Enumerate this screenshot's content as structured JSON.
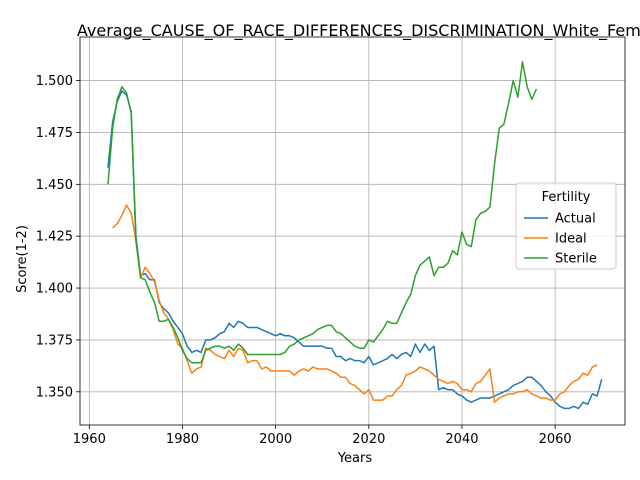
{
  "chart_data": {
    "type": "line",
    "title": "Average_CAUSE_OF_RACE_DIFFERENCES_DISCRIMINATION_White_Female_Above_",
    "xlabel": "Years",
    "ylabel": "Score(1-2)",
    "xlim": [
      1958,
      2075
    ],
    "ylim": [
      1.334,
      1.521
    ],
    "xticks": [
      1960,
      1980,
      2000,
      2020,
      2040,
      2060
    ],
    "yticks": [
      1.35,
      1.375,
      1.4,
      1.425,
      1.45,
      1.475,
      1.5
    ],
    "ytick_labels": [
      "1.350",
      "1.375",
      "1.400",
      "1.425",
      "1.450",
      "1.475",
      "1.500"
    ],
    "grid": true,
    "legend": {
      "title": "Fertility",
      "placement": "center-right"
    },
    "series": [
      {
        "name": "Actual",
        "color": "#1f77b4",
        "points": [
          [
            1964,
            1.458
          ],
          [
            1965,
            1.48
          ],
          [
            1966,
            1.49
          ],
          [
            1967,
            1.495
          ],
          [
            1968,
            1.493
          ],
          [
            1969,
            1.485
          ],
          [
            1970,
            1.425
          ],
          [
            1971,
            1.406
          ],
          [
            1972,
            1.407
          ],
          [
            1973,
            1.404
          ],
          [
            1974,
            1.404
          ],
          [
            1975,
            1.393
          ],
          [
            1976,
            1.39
          ],
          [
            1977,
            1.388
          ],
          [
            1978,
            1.384
          ],
          [
            1979,
            1.381
          ],
          [
            1980,
            1.378
          ],
          [
            1981,
            1.372
          ],
          [
            1982,
            1.369
          ],
          [
            1983,
            1.37
          ],
          [
            1984,
            1.369
          ],
          [
            1985,
            1.375
          ],
          [
            1986,
            1.375
          ],
          [
            1987,
            1.376
          ],
          [
            1988,
            1.378
          ],
          [
            1989,
            1.379
          ],
          [
            1990,
            1.383
          ],
          [
            1991,
            1.381
          ],
          [
            1992,
            1.384
          ],
          [
            1993,
            1.383
          ],
          [
            1994,
            1.381
          ],
          [
            1995,
            1.381
          ],
          [
            1996,
            1.381
          ],
          [
            1997,
            1.38
          ],
          [
            1998,
            1.379
          ],
          [
            1999,
            1.378
          ],
          [
            2000,
            1.377
          ],
          [
            2001,
            1.378
          ],
          [
            2002,
            1.377
          ],
          [
            2003,
            1.377
          ],
          [
            2004,
            1.376
          ],
          [
            2005,
            1.374
          ],
          [
            2006,
            1.372
          ],
          [
            2007,
            1.372
          ],
          [
            2008,
            1.372
          ],
          [
            2009,
            1.372
          ],
          [
            2010,
            1.372
          ],
          [
            2011,
            1.371
          ],
          [
            2012,
            1.371
          ],
          [
            2013,
            1.367
          ],
          [
            2014,
            1.367
          ],
          [
            2015,
            1.365
          ],
          [
            2016,
            1.366
          ],
          [
            2017,
            1.365
          ],
          [
            2018,
            1.365
          ],
          [
            2019,
            1.364
          ],
          [
            2020,
            1.367
          ],
          [
            2021,
            1.363
          ],
          [
            2022,
            1.364
          ],
          [
            2023,
            1.365
          ],
          [
            2024,
            1.366
          ],
          [
            2025,
            1.368
          ],
          [
            2026,
            1.366
          ],
          [
            2027,
            1.368
          ],
          [
            2028,
            1.369
          ],
          [
            2029,
            1.367
          ],
          [
            2030,
            1.373
          ],
          [
            2031,
            1.369
          ],
          [
            2032,
            1.373
          ],
          [
            2033,
            1.37
          ],
          [
            2034,
            1.372
          ],
          [
            2035,
            1.351
          ],
          [
            2036,
            1.352
          ],
          [
            2037,
            1.351
          ],
          [
            2038,
            1.351
          ],
          [
            2039,
            1.349
          ],
          [
            2040,
            1.348
          ],
          [
            2041,
            1.346
          ],
          [
            2042,
            1.345
          ],
          [
            2043,
            1.346
          ],
          [
            2044,
            1.347
          ],
          [
            2045,
            1.347
          ],
          [
            2046,
            1.347
          ],
          [
            2047,
            1.348
          ],
          [
            2048,
            1.349
          ],
          [
            2049,
            1.35
          ],
          [
            2050,
            1.351
          ],
          [
            2051,
            1.353
          ],
          [
            2052,
            1.354
          ],
          [
            2053,
            1.355
          ],
          [
            2054,
            1.357
          ],
          [
            2055,
            1.357
          ],
          [
            2056,
            1.355
          ],
          [
            2057,
            1.353
          ],
          [
            2058,
            1.35
          ],
          [
            2059,
            1.348
          ],
          [
            2060,
            1.345
          ],
          [
            2061,
            1.343
          ],
          [
            2062,
            1.342
          ],
          [
            2063,
            1.342
          ],
          [
            2064,
            1.343
          ],
          [
            2065,
            1.342
          ],
          [
            2066,
            1.345
          ],
          [
            2067,
            1.344
          ],
          [
            2068,
            1.349
          ],
          [
            2069,
            1.348
          ],
          [
            2070,
            1.356
          ]
        ]
      },
      {
        "name": "Ideal",
        "color": "#ff7f0e",
        "points": [
          [
            1965,
            1.429
          ],
          [
            1966,
            1.431
          ],
          [
            1967,
            1.435
          ],
          [
            1968,
            1.44
          ],
          [
            1969,
            1.436
          ],
          [
            1970,
            1.423
          ],
          [
            1971,
            1.405
          ],
          [
            1972,
            1.41
          ],
          [
            1973,
            1.407
          ],
          [
            1974,
            1.403
          ],
          [
            1975,
            1.394
          ],
          [
            1976,
            1.388
          ],
          [
            1977,
            1.385
          ],
          [
            1978,
            1.38
          ],
          [
            1979,
            1.373
          ],
          [
            1980,
            1.371
          ],
          [
            1981,
            1.365
          ],
          [
            1982,
            1.359
          ],
          [
            1983,
            1.361
          ],
          [
            1984,
            1.362
          ],
          [
            1985,
            1.371
          ],
          [
            1986,
            1.37
          ],
          [
            1987,
            1.368
          ],
          [
            1988,
            1.367
          ],
          [
            1989,
            1.366
          ],
          [
            1990,
            1.37
          ],
          [
            1991,
            1.367
          ],
          [
            1992,
            1.371
          ],
          [
            1993,
            1.37
          ],
          [
            1994,
            1.364
          ],
          [
            1995,
            1.365
          ],
          [
            1996,
            1.365
          ],
          [
            1997,
            1.361
          ],
          [
            1998,
            1.362
          ],
          [
            1999,
            1.36
          ],
          [
            2000,
            1.36
          ],
          [
            2001,
            1.36
          ],
          [
            2002,
            1.36
          ],
          [
            2003,
            1.36
          ],
          [
            2004,
            1.358
          ],
          [
            2005,
            1.36
          ],
          [
            2006,
            1.361
          ],
          [
            2007,
            1.36
          ],
          [
            2008,
            1.362
          ],
          [
            2009,
            1.361
          ],
          [
            2010,
            1.361
          ],
          [
            2011,
            1.361
          ],
          [
            2012,
            1.36
          ],
          [
            2013,
            1.359
          ],
          [
            2014,
            1.357
          ],
          [
            2015,
            1.357
          ],
          [
            2016,
            1.354
          ],
          [
            2017,
            1.353
          ],
          [
            2018,
            1.351
          ],
          [
            2019,
            1.349
          ],
          [
            2020,
            1.351
          ],
          [
            2021,
            1.346
          ],
          [
            2022,
            1.346
          ],
          [
            2023,
            1.346
          ],
          [
            2024,
            1.348
          ],
          [
            2025,
            1.348
          ],
          [
            2026,
            1.351
          ],
          [
            2027,
            1.353
          ],
          [
            2028,
            1.358
          ],
          [
            2029,
            1.359
          ],
          [
            2030,
            1.36
          ],
          [
            2031,
            1.362
          ],
          [
            2032,
            1.361
          ],
          [
            2033,
            1.36
          ],
          [
            2034,
            1.358
          ],
          [
            2035,
            1.356
          ],
          [
            2036,
            1.355
          ],
          [
            2037,
            1.354
          ],
          [
            2038,
            1.355
          ],
          [
            2039,
            1.354
          ],
          [
            2040,
            1.351
          ],
          [
            2041,
            1.351
          ],
          [
            2042,
            1.35
          ],
          [
            2043,
            1.354
          ],
          [
            2044,
            1.355
          ],
          [
            2045,
            1.358
          ],
          [
            2046,
            1.361
          ],
          [
            2047,
            1.345
          ],
          [
            2048,
            1.347
          ],
          [
            2049,
            1.348
          ],
          [
            2050,
            1.349
          ],
          [
            2051,
            1.349
          ],
          [
            2052,
            1.35
          ],
          [
            2053,
            1.35
          ],
          [
            2054,
            1.351
          ],
          [
            2055,
            1.349
          ],
          [
            2056,
            1.348
          ],
          [
            2057,
            1.347
          ],
          [
            2058,
            1.347
          ],
          [
            2059,
            1.346
          ],
          [
            2060,
            1.346
          ],
          [
            2061,
            1.349
          ],
          [
            2062,
            1.35
          ],
          [
            2063,
            1.353
          ],
          [
            2064,
            1.355
          ],
          [
            2065,
            1.356
          ],
          [
            2066,
            1.359
          ],
          [
            2067,
            1.358
          ],
          [
            2068,
            1.362
          ],
          [
            2069,
            1.363
          ]
        ]
      },
      {
        "name": "Sterile",
        "color": "#2ca02c",
        "points": [
          [
            1964,
            1.45
          ],
          [
            1965,
            1.477
          ],
          [
            1966,
            1.491
          ],
          [
            1967,
            1.497
          ],
          [
            1968,
            1.494
          ],
          [
            1969,
            1.484
          ],
          [
            1970,
            1.423
          ],
          [
            1971,
            1.405
          ],
          [
            1972,
            1.404
          ],
          [
            1973,
            1.398
          ],
          [
            1974,
            1.393
          ],
          [
            1975,
            1.384
          ],
          [
            1976,
            1.384
          ],
          [
            1977,
            1.385
          ],
          [
            1978,
            1.381
          ],
          [
            1979,
            1.376
          ],
          [
            1980,
            1.37
          ],
          [
            1981,
            1.366
          ],
          [
            1982,
            1.364
          ],
          [
            1983,
            1.364
          ],
          [
            1984,
            1.364
          ],
          [
            1985,
            1.37
          ],
          [
            1986,
            1.371
          ],
          [
            1987,
            1.372
          ],
          [
            1988,
            1.372
          ],
          [
            1989,
            1.371
          ],
          [
            1990,
            1.372
          ],
          [
            1991,
            1.37
          ],
          [
            1992,
            1.373
          ],
          [
            1993,
            1.371
          ],
          [
            1994,
            1.368
          ],
          [
            1995,
            1.368
          ],
          [
            1996,
            1.368
          ],
          [
            1997,
            1.368
          ],
          [
            1998,
            1.368
          ],
          [
            1999,
            1.368
          ],
          [
            2000,
            1.368
          ],
          [
            2001,
            1.368
          ],
          [
            2002,
            1.369
          ],
          [
            2003,
            1.372
          ],
          [
            2004,
            1.373
          ],
          [
            2005,
            1.375
          ],
          [
            2006,
            1.376
          ],
          [
            2007,
            1.377
          ],
          [
            2008,
            1.378
          ],
          [
            2009,
            1.38
          ],
          [
            2010,
            1.381
          ],
          [
            2011,
            1.382
          ],
          [
            2012,
            1.382
          ],
          [
            2013,
            1.379
          ],
          [
            2014,
            1.378
          ],
          [
            2015,
            1.376
          ],
          [
            2016,
            1.374
          ],
          [
            2017,
            1.372
          ],
          [
            2018,
            1.371
          ],
          [
            2019,
            1.371
          ],
          [
            2020,
            1.375
          ],
          [
            2021,
            1.374
          ],
          [
            2022,
            1.377
          ],
          [
            2023,
            1.38
          ],
          [
            2024,
            1.384
          ],
          [
            2025,
            1.383
          ],
          [
            2026,
            1.383
          ],
          [
            2027,
            1.388
          ],
          [
            2028,
            1.393
          ],
          [
            2029,
            1.397
          ],
          [
            2030,
            1.406
          ],
          [
            2031,
            1.411
          ],
          [
            2032,
            1.413
          ],
          [
            2033,
            1.415
          ],
          [
            2034,
            1.406
          ],
          [
            2035,
            1.41
          ],
          [
            2036,
            1.41
          ],
          [
            2037,
            1.412
          ],
          [
            2038,
            1.418
          ],
          [
            2039,
            1.416
          ],
          [
            2040,
            1.427
          ],
          [
            2041,
            1.421
          ],
          [
            2042,
            1.42
          ],
          [
            2043,
            1.433
          ],
          [
            2044,
            1.436
          ],
          [
            2045,
            1.437
          ],
          [
            2046,
            1.439
          ],
          [
            2047,
            1.46
          ],
          [
            2048,
            1.477
          ],
          [
            2049,
            1.479
          ],
          [
            2050,
            1.489
          ],
          [
            2051,
            1.5
          ],
          [
            2052,
            1.492
          ],
          [
            2053,
            1.509
          ],
          [
            2054,
            1.497
          ],
          [
            2055,
            1.491
          ],
          [
            2056,
            1.496
          ]
        ]
      }
    ]
  }
}
